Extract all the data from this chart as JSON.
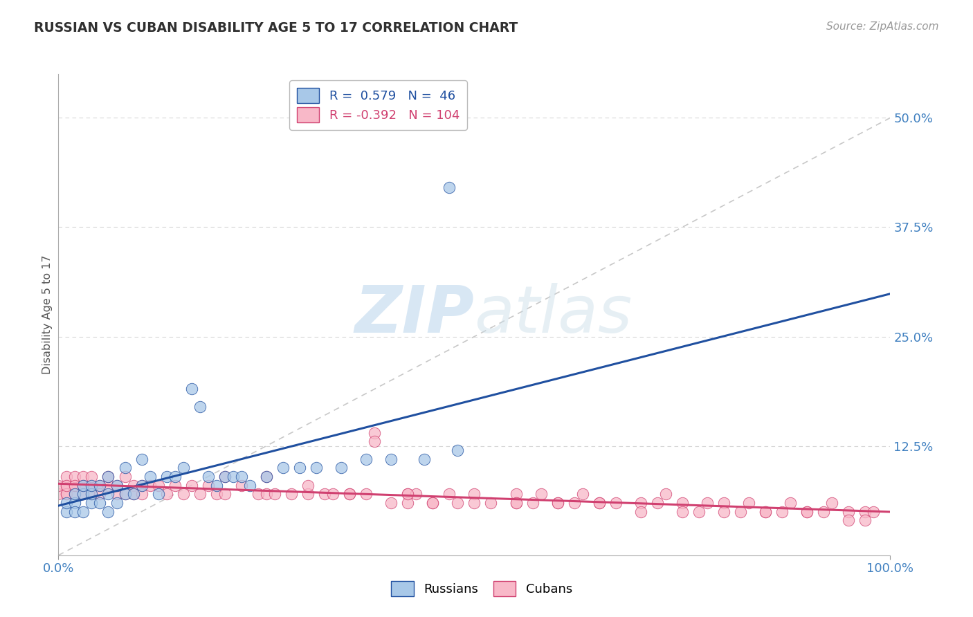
{
  "title": "RUSSIAN VS CUBAN DISABILITY AGE 5 TO 17 CORRELATION CHART",
  "source": "Source: ZipAtlas.com",
  "ylabel": "Disability Age 5 to 17",
  "r_russian": 0.579,
  "n_russian": 46,
  "r_cuban": -0.392,
  "n_cuban": 104,
  "russian_color": "#a8c8e8",
  "cuban_color": "#f8b8c8",
  "russian_line_color": "#2050a0",
  "cuban_line_color": "#d04070",
  "trendline_dashed_color": "#c8c8c8",
  "background_color": "#ffffff",
  "xlim": [
    0.0,
    1.0
  ],
  "ylim": [
    0.0,
    0.55
  ],
  "title_color": "#303030",
  "axis_label_color": "#4080c0",
  "watermark_color": "#d0e8f8",
  "grid_color": "#d8d8d8",
  "rus_x": [
    0.01,
    0.01,
    0.02,
    0.02,
    0.02,
    0.03,
    0.03,
    0.03,
    0.04,
    0.04,
    0.04,
    0.05,
    0.05,
    0.06,
    0.06,
    0.06,
    0.07,
    0.07,
    0.08,
    0.08,
    0.09,
    0.1,
    0.1,
    0.11,
    0.12,
    0.13,
    0.14,
    0.15,
    0.16,
    0.17,
    0.18,
    0.19,
    0.2,
    0.21,
    0.22,
    0.23,
    0.25,
    0.27,
    0.29,
    0.31,
    0.34,
    0.37,
    0.4,
    0.44,
    0.48,
    0.47
  ],
  "rus_y": [
    0.05,
    0.06,
    0.06,
    0.07,
    0.05,
    0.05,
    0.07,
    0.08,
    0.06,
    0.07,
    0.08,
    0.06,
    0.08,
    0.05,
    0.07,
    0.09,
    0.06,
    0.08,
    0.07,
    0.1,
    0.07,
    0.08,
    0.11,
    0.09,
    0.07,
    0.09,
    0.09,
    0.1,
    0.19,
    0.17,
    0.09,
    0.08,
    0.09,
    0.09,
    0.09,
    0.08,
    0.09,
    0.1,
    0.1,
    0.1,
    0.1,
    0.11,
    0.11,
    0.11,
    0.12,
    0.42
  ],
  "cub_x": [
    0.0,
    0.0,
    0.01,
    0.01,
    0.01,
    0.01,
    0.01,
    0.02,
    0.02,
    0.02,
    0.02,
    0.03,
    0.03,
    0.03,
    0.04,
    0.04,
    0.04,
    0.05,
    0.05,
    0.06,
    0.06,
    0.07,
    0.07,
    0.08,
    0.08,
    0.09,
    0.09,
    0.1,
    0.1,
    0.11,
    0.12,
    0.13,
    0.14,
    0.15,
    0.16,
    0.17,
    0.18,
    0.19,
    0.2,
    0.22,
    0.24,
    0.25,
    0.26,
    0.28,
    0.3,
    0.32,
    0.33,
    0.35,
    0.37,
    0.38,
    0.4,
    0.42,
    0.43,
    0.45,
    0.47,
    0.48,
    0.5,
    0.52,
    0.55,
    0.57,
    0.58,
    0.6,
    0.62,
    0.63,
    0.65,
    0.67,
    0.7,
    0.72,
    0.73,
    0.75,
    0.77,
    0.78,
    0.8,
    0.82,
    0.83,
    0.85,
    0.87,
    0.88,
    0.9,
    0.92,
    0.93,
    0.95,
    0.97,
    0.98,
    0.38,
    0.42,
    0.2,
    0.25,
    0.3,
    0.35,
    0.45,
    0.5,
    0.55,
    0.6,
    0.65,
    0.7,
    0.75,
    0.8,
    0.85,
    0.9,
    0.95,
    0.97,
    0.42,
    0.55
  ],
  "cub_y": [
    0.07,
    0.08,
    0.08,
    0.07,
    0.09,
    0.07,
    0.08,
    0.08,
    0.07,
    0.09,
    0.08,
    0.07,
    0.09,
    0.08,
    0.08,
    0.07,
    0.09,
    0.08,
    0.07,
    0.08,
    0.09,
    0.07,
    0.08,
    0.09,
    0.07,
    0.08,
    0.07,
    0.08,
    0.07,
    0.08,
    0.08,
    0.07,
    0.08,
    0.07,
    0.08,
    0.07,
    0.08,
    0.07,
    0.07,
    0.08,
    0.07,
    0.07,
    0.07,
    0.07,
    0.07,
    0.07,
    0.07,
    0.07,
    0.07,
    0.14,
    0.06,
    0.07,
    0.07,
    0.06,
    0.07,
    0.06,
    0.07,
    0.06,
    0.07,
    0.06,
    0.07,
    0.06,
    0.06,
    0.07,
    0.06,
    0.06,
    0.06,
    0.06,
    0.07,
    0.06,
    0.05,
    0.06,
    0.06,
    0.05,
    0.06,
    0.05,
    0.05,
    0.06,
    0.05,
    0.05,
    0.06,
    0.05,
    0.05,
    0.05,
    0.13,
    0.06,
    0.09,
    0.09,
    0.08,
    0.07,
    0.06,
    0.06,
    0.06,
    0.06,
    0.06,
    0.05,
    0.05,
    0.05,
    0.05,
    0.05,
    0.04,
    0.04,
    0.07,
    0.06
  ]
}
